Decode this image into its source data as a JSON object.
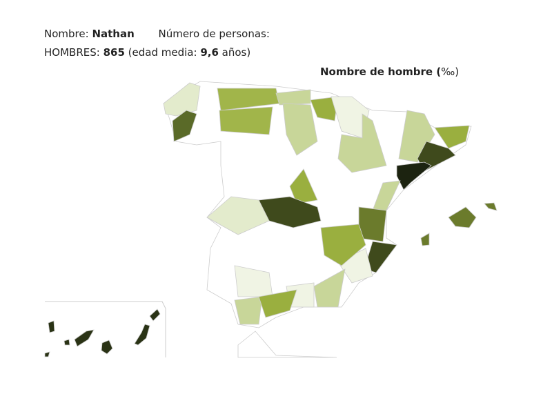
{
  "info": {
    "name_label": "Nombre:",
    "name": "Nathan",
    "count_label": "Número de personas:",
    "men_label": "HOMBRES:",
    "men_count": 865,
    "age_label": "(edad media:",
    "age": "9,6",
    "age_unit": "años)"
  },
  "map": {
    "title": "Nombre de hombre (",
    "unit": "‰",
    "title_end": ")"
  }
}
